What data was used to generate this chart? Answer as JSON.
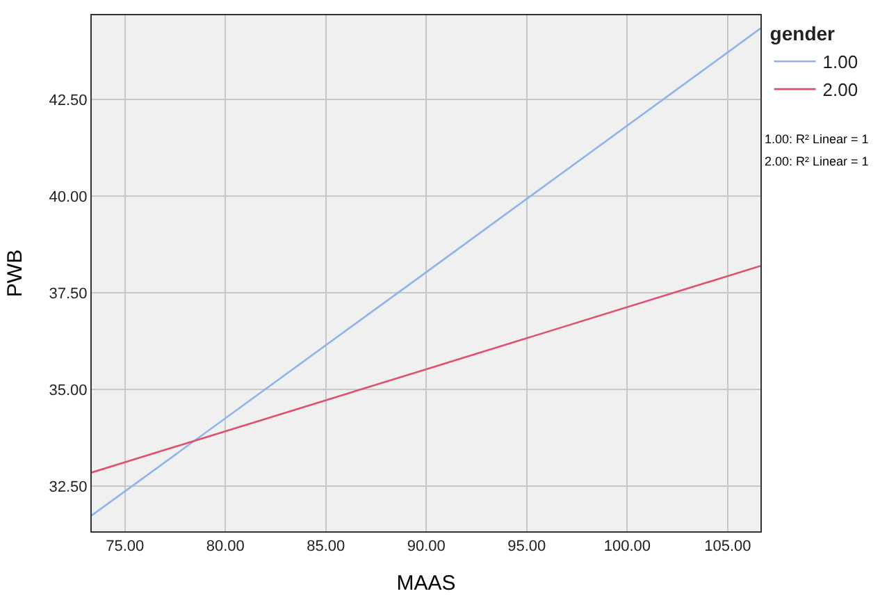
{
  "chart_data": {
    "type": "line",
    "xlabel": "MAAS",
    "ylabel": "PWB",
    "legend_title": "gender",
    "series": [
      {
        "name": "1.00",
        "color": "#8db4e8",
        "x": [
          73.35,
          90,
          106.63
        ],
        "values": [
          31.75,
          38.04,
          44.34
        ]
      },
      {
        "name": "2.00",
        "color": "#e0506e",
        "x": [
          73.35,
          90,
          106.63
        ],
        "values": [
          32.86,
          35.53,
          38.2
        ]
      }
    ],
    "xlim": [
      73.35,
      106.63
    ],
    "xticks": [
      {
        "value": 75,
        "label": "75.00"
      },
      {
        "value": 80,
        "label": "80.00"
      },
      {
        "value": 85,
        "label": "85.00"
      },
      {
        "value": 90,
        "label": "90.00"
      },
      {
        "value": 95,
        "label": "95.00"
      },
      {
        "value": 100,
        "label": "100.00"
      },
      {
        "value": 105,
        "label": "105.00"
      }
    ],
    "ylim": [
      31.34,
      44.68
    ],
    "yticks": [
      {
        "value": 32.5,
        "label": "32.50"
      },
      {
        "value": 35,
        "label": "35.00"
      },
      {
        "value": 37.5,
        "label": "37.50"
      },
      {
        "value": 40,
        "label": "40.00"
      },
      {
        "value": 42.5,
        "label": "42.50"
      }
    ],
    "grid": true,
    "legend": "top right",
    "marker": "none",
    "line_style": "solid",
    "annotations": [
      "1.00: R² Linear = 1",
      "2.00: R² Linear = 1"
    ]
  }
}
